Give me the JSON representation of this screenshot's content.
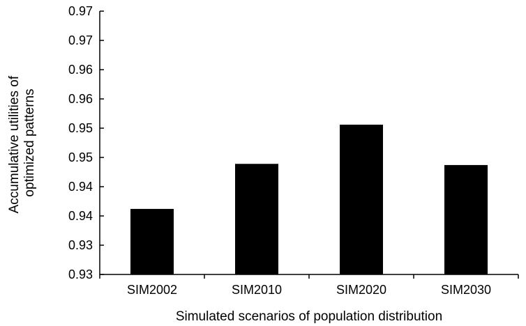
{
  "chart_data": {
    "type": "bar",
    "categories": [
      "SIM2002",
      "SIM2010",
      "SIM2020",
      "SIM2030"
    ],
    "series": [
      {
        "values": [
          0.9412,
          0.9489,
          0.9556,
          0.9487
        ]
      }
    ],
    "xlabel": "Simulated scenarios of population distribution",
    "ylabel_lines": [
      "Accumulative utilities of",
      "optimized patterns"
    ],
    "ylim": [
      0.93,
      0.975
    ],
    "yticks": [
      0.93,
      0.935,
      0.94,
      0.945,
      0.95,
      0.955,
      0.96,
      0.965,
      0.97
    ],
    "ytick_labels": [
      "0.93",
      "0.93",
      "0.94",
      "0.94",
      "0.95",
      "0.95",
      "0.96",
      "0.96",
      "0.97"
    ],
    "top_tick_label": "0.97",
    "grid": false,
    "bar_color": "#000000"
  }
}
